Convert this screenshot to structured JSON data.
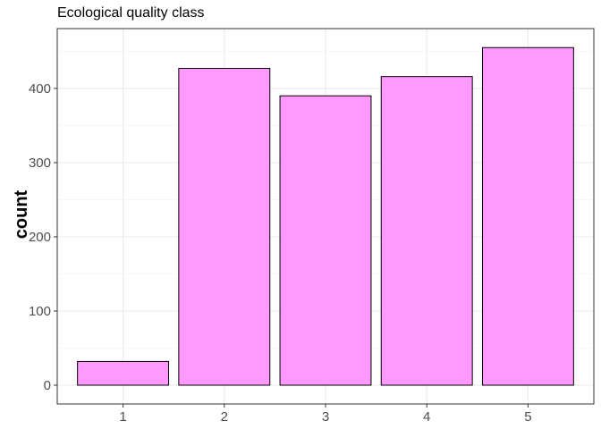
{
  "chart_data": {
    "type": "bar",
    "title": "Ecological quality class",
    "xlabel": "",
    "ylabel": "count",
    "categories": [
      "1",
      "2",
      "3",
      "4",
      "5"
    ],
    "values": [
      32,
      427,
      390,
      416,
      455
    ],
    "ylim": [
      0,
      477
    ],
    "yticks": [
      0,
      100,
      200,
      300,
      400
    ],
    "grid": true,
    "legend": "none",
    "colors": {
      "bar_fill": "#FF99FF",
      "bar_stroke": "#000000",
      "grid_major": "#e8e8e8",
      "grid_minor": "#f4f4f4",
      "panel_border": "#333333",
      "tick_text": "#4d4d4d"
    }
  }
}
